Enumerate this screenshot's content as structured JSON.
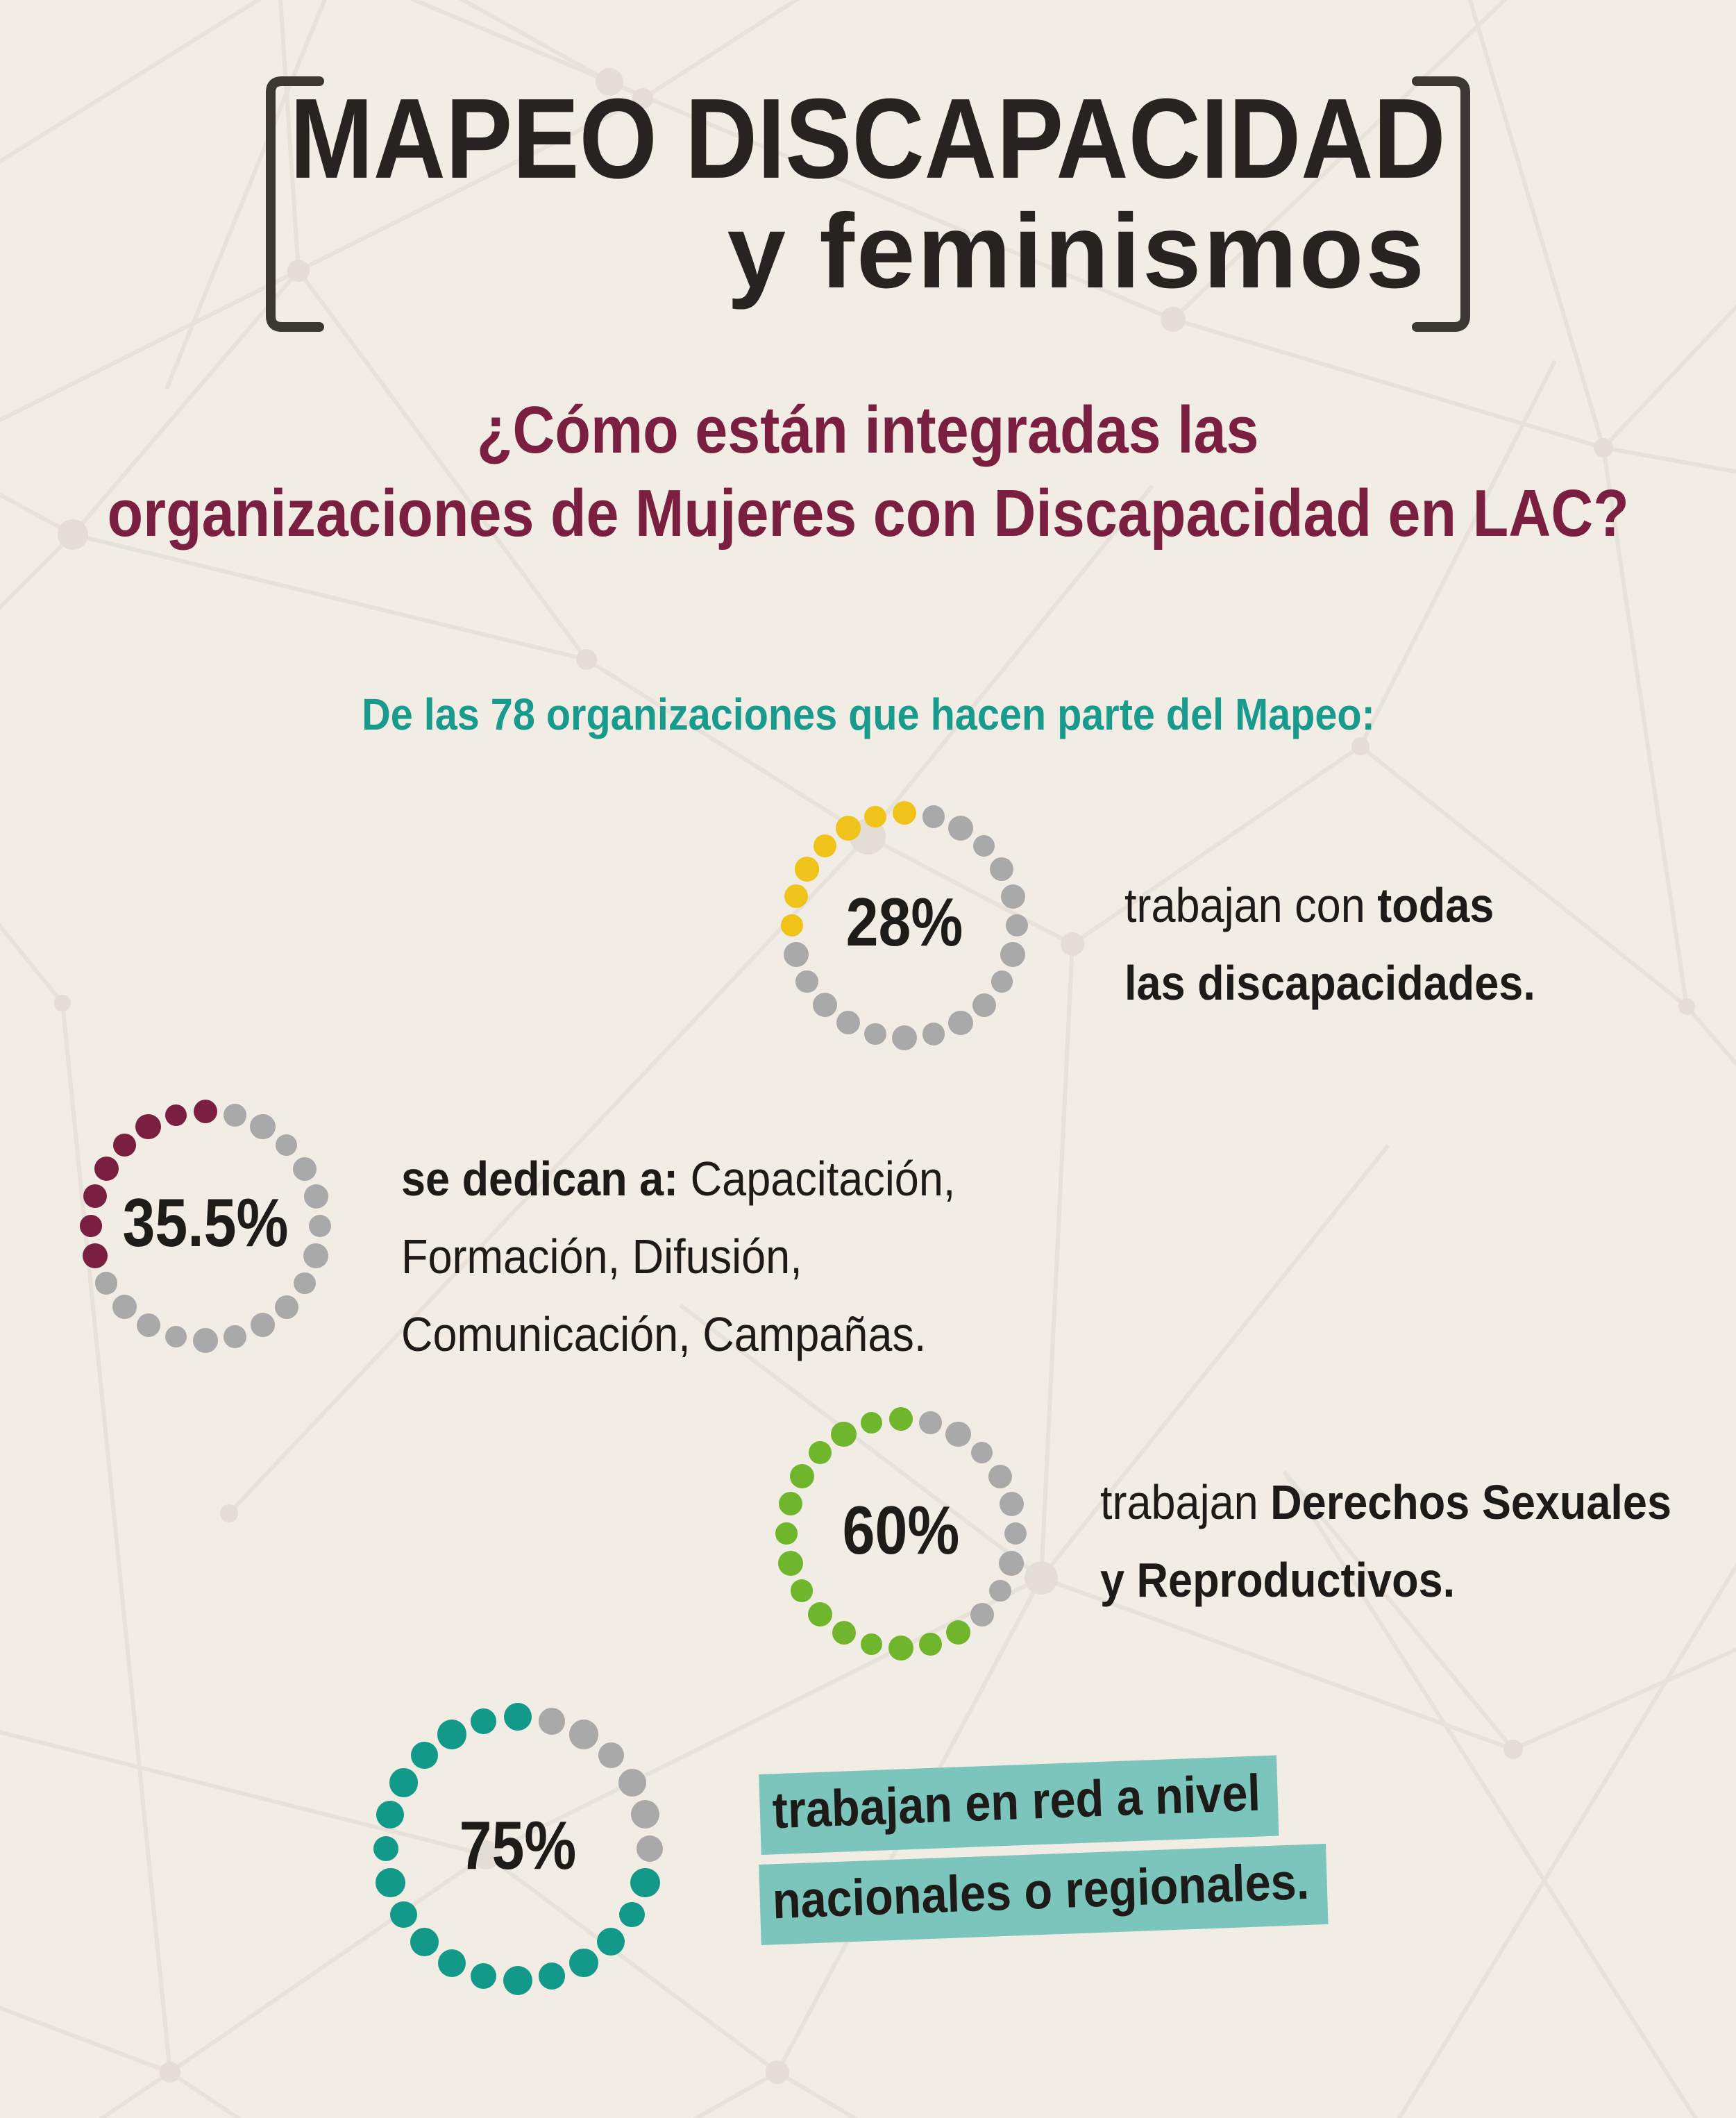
{
  "title": {
    "line1": "MAPEO DISCAPACIDAD",
    "line2": "y feminismos"
  },
  "question": {
    "line1": "¿Cómo están integradas las",
    "line2": "organizaciones de Mujeres con Discapacidad en LAC?"
  },
  "intro": "De las 78 organizaciones que hacen parte del Mapeo:",
  "colors": {
    "background": "#f1ece4",
    "pattern_line": "#e7e1d9",
    "ink": "#262320",
    "maroon": "#7b1f41",
    "teal_text": "#189a8c",
    "gray_dot": "#a9a9a9",
    "highlight": "#7cc5bc",
    "yellow_dot": "#f0c31a",
    "green_dot": "#70b62c",
    "teal_dot": "#12998a"
  },
  "chart_data": [
    {
      "type": "dot-donut",
      "label": "28%",
      "value_pct": 28,
      "dot_color": "#f0c31a",
      "dots_total": 24,
      "dots_colored": 7,
      "lines": [
        [
          {
            "t": "trabajan con ",
            "b": 0
          },
          {
            "t": "todas",
            "b": 1
          }
        ],
        [
          {
            "t": "las discapacidades.",
            "b": 1
          }
        ]
      ]
    },
    {
      "type": "dot-donut",
      "label": "35.5%",
      "value_pct": 35.5,
      "dot_color": "#7b1f41",
      "dots_total": 24,
      "dots_colored": 8,
      "lines": [
        [
          {
            "t": "se dedican a:",
            "b": 1
          },
          {
            "t": " Capacitación,",
            "b": 0
          }
        ],
        [
          {
            "t": "Formación, Difusión,",
            "b": 0
          }
        ],
        [
          {
            "t": "Comunicación, Campañas.",
            "b": 0
          }
        ]
      ]
    },
    {
      "type": "dot-donut",
      "label": "60%",
      "value_pct": 60,
      "dot_color": "#70b62c",
      "dots_total": 24,
      "dots_colored": 15,
      "lines": [
        [
          {
            "t": "trabajan ",
            "b": 0
          },
          {
            "t": "Derechos Sexuales",
            "b": 1
          }
        ],
        [
          {
            "t": "y Reproductivos.",
            "b": 1
          }
        ]
      ]
    },
    {
      "type": "dot-donut",
      "label": "75%",
      "value_pct": 75,
      "dot_color": "#12998a",
      "dots_total": 24,
      "dots_colored": 18,
      "highlight": true,
      "lines": [
        [
          {
            "t": "trabajan en red a nivel",
            "b": 1
          }
        ],
        [
          {
            "t": "nacionales o regionales.",
            "b": 1
          }
        ]
      ]
    }
  ]
}
